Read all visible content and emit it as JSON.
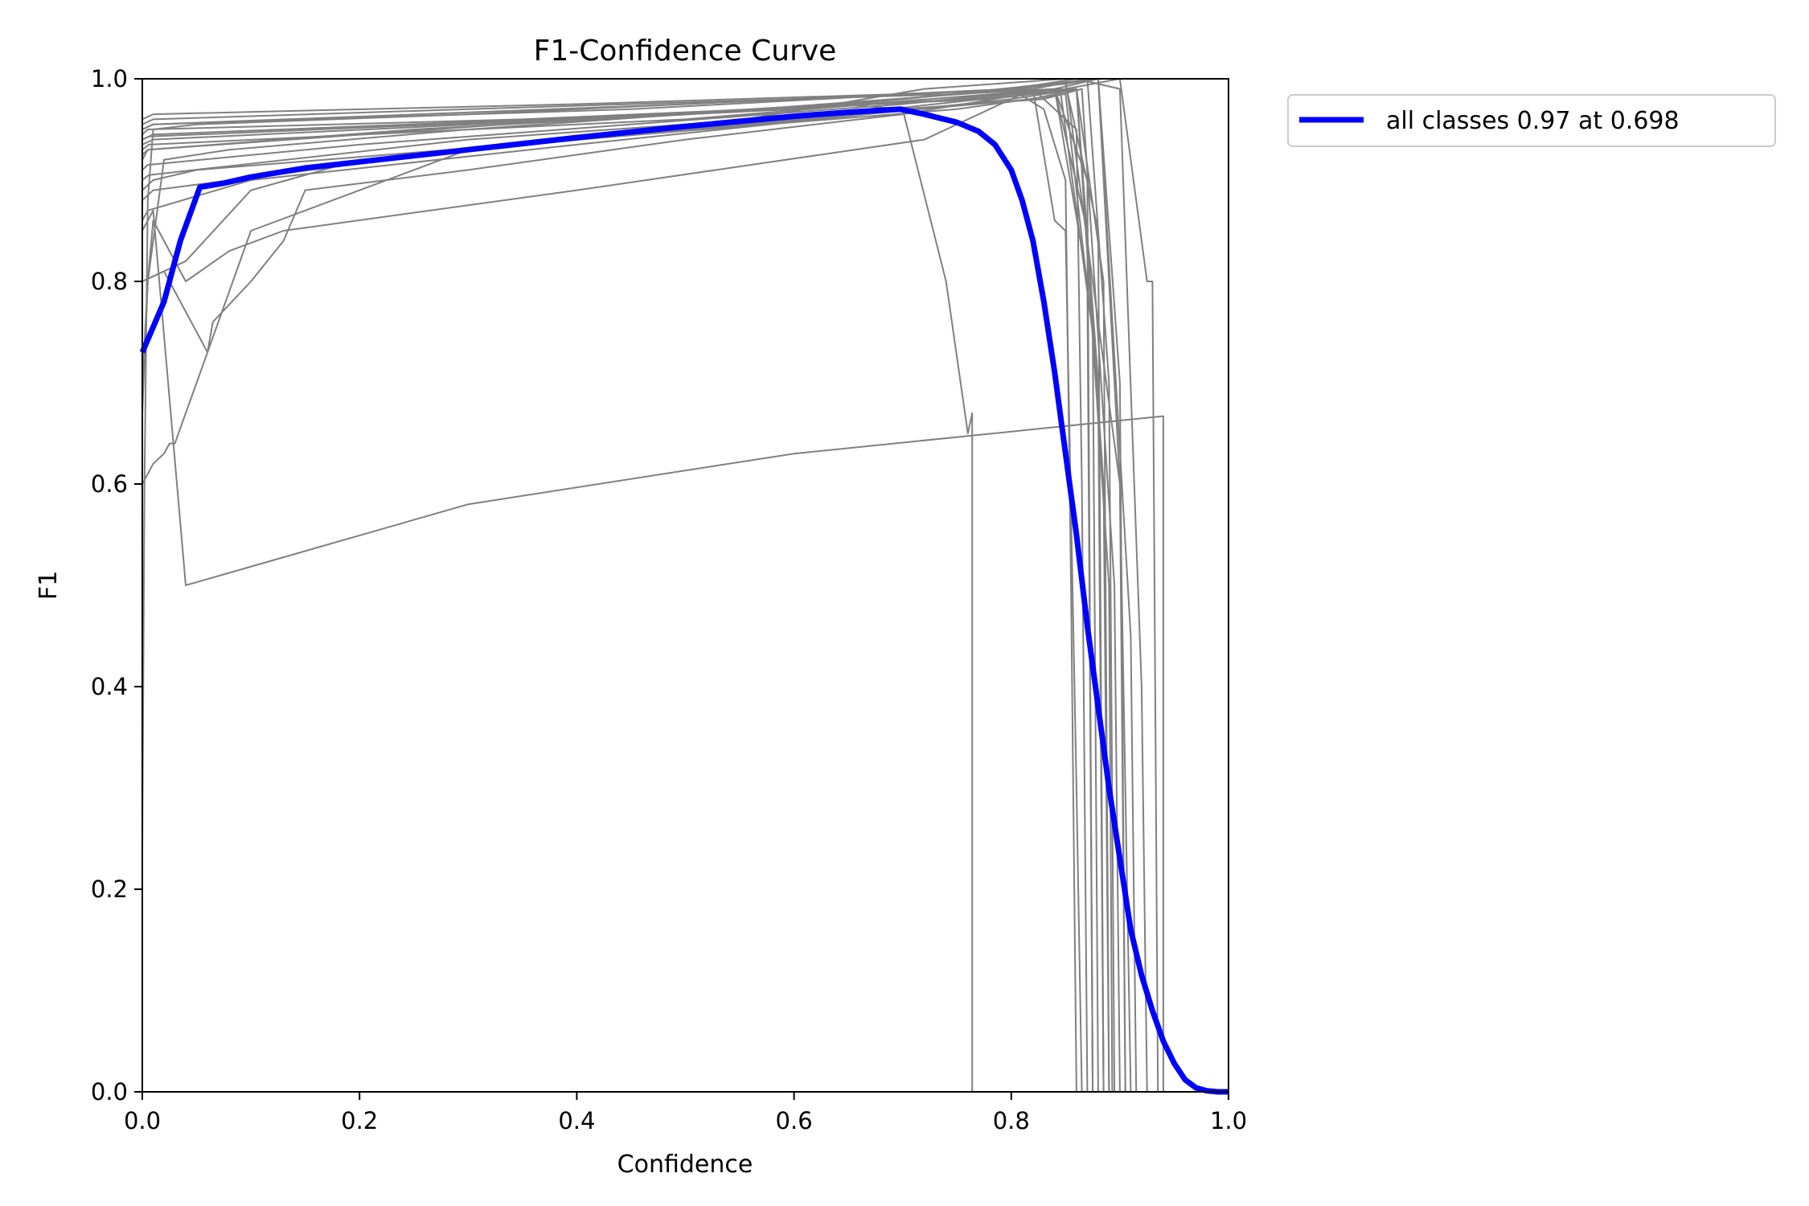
{
  "chart_data": {
    "type": "line",
    "title": "F1-Confidence Curve",
    "xlabel": "Confidence",
    "ylabel": "F1",
    "xlim": [
      0,
      1
    ],
    "ylim": [
      0,
      1
    ],
    "xticks": [
      "0.0",
      "0.2",
      "0.4",
      "0.6",
      "0.8",
      "1.0"
    ],
    "yticks": [
      "0.0",
      "0.2",
      "0.4",
      "0.6",
      "0.8",
      "1.0"
    ],
    "grid": false,
    "legend_position": "outside-top-right",
    "colors": {
      "per_class": "#808080",
      "all_classes": "#0000ff"
    },
    "series": [
      {
        "name": "all classes 0.97 at 0.698",
        "color": "#0000ff",
        "x": [
          0.0,
          0.02,
          0.035,
          0.053,
          0.075,
          0.1,
          0.15,
          0.2,
          0.3,
          0.4,
          0.5,
          0.6,
          0.65,
          0.698,
          0.72,
          0.75,
          0.77,
          0.785,
          0.8,
          0.81,
          0.82,
          0.83,
          0.84,
          0.85,
          0.86,
          0.87,
          0.88,
          0.89,
          0.9,
          0.91,
          0.92,
          0.93,
          0.94,
          0.95,
          0.96,
          0.97,
          0.98,
          0.99,
          1.0
        ],
        "y": [
          0.73,
          0.78,
          0.84,
          0.893,
          0.897,
          0.903,
          0.912,
          0.918,
          0.93,
          0.942,
          0.953,
          0.963,
          0.967,
          0.97,
          0.965,
          0.957,
          0.948,
          0.935,
          0.91,
          0.88,
          0.84,
          0.78,
          0.71,
          0.63,
          0.55,
          0.46,
          0.38,
          0.3,
          0.23,
          0.16,
          0.115,
          0.08,
          0.05,
          0.028,
          0.012,
          0.004,
          0.001,
          0.0,
          0.0
        ]
      }
    ],
    "class_series": [
      {
        "x": [
          0.0,
          0.002,
          0.005,
          0.01,
          0.05,
          0.3,
          0.6,
          0.8,
          0.83,
          0.85,
          0.855,
          0.86,
          0.87,
          1.0
        ],
        "y": [
          0.24,
          0.6,
          0.88,
          0.95,
          0.955,
          0.965,
          0.98,
          0.99,
          0.97,
          0.9,
          0.5,
          0.0,
          0.0,
          0.0
        ]
      },
      {
        "x": [
          0.0,
          0.01,
          0.4,
          0.7,
          0.82,
          0.86,
          0.865,
          0.87,
          1.0
        ],
        "y": [
          0.96,
          0.965,
          0.975,
          0.985,
          0.99,
          0.95,
          0.6,
          0.0,
          0.0
        ]
      },
      {
        "x": [
          0.0,
          0.01,
          0.3,
          0.75,
          0.84,
          0.87,
          0.875,
          1.0
        ],
        "y": [
          0.955,
          0.96,
          0.97,
          0.985,
          0.99,
          0.9,
          0.0,
          0.0
        ]
      },
      {
        "x": [
          0.0,
          0.01,
          0.45,
          0.8,
          0.85,
          0.88,
          0.885,
          1.0
        ],
        "y": [
          0.95,
          0.955,
          0.97,
          0.99,
          0.995,
          0.85,
          0.0,
          0.0
        ]
      },
      {
        "x": [
          0.0,
          0.005,
          0.35,
          0.78,
          0.86,
          0.885,
          0.89,
          1.0
        ],
        "y": [
          0.945,
          0.95,
          0.96,
          0.98,
          0.99,
          0.8,
          0.0,
          0.0
        ]
      },
      {
        "x": [
          0.0,
          0.006,
          0.5,
          0.82,
          0.87,
          0.89,
          0.895,
          1.0
        ],
        "y": [
          0.94,
          0.943,
          0.965,
          0.99,
          1.0,
          0.7,
          0.0,
          0.0
        ]
      },
      {
        "x": [
          0.0,
          0.01,
          0.6,
          0.85,
          0.88,
          0.9,
          0.905,
          1.0
        ],
        "y": [
          0.935,
          0.94,
          0.97,
          0.995,
          1.0,
          0.6,
          0.0,
          0.0
        ]
      },
      {
        "x": [
          0.0,
          0.005,
          0.25,
          0.76,
          0.845,
          0.875,
          0.88,
          1.0
        ],
        "y": [
          0.925,
          0.93,
          0.95,
          0.98,
          0.99,
          0.75,
          0.0,
          0.0
        ]
      },
      {
        "x": [
          0.0,
          0.005,
          0.2,
          0.7,
          0.84,
          0.87,
          0.875,
          1.0
        ],
        "y": [
          0.91,
          0.915,
          0.935,
          0.975,
          0.99,
          0.85,
          0.0,
          0.0
        ]
      },
      {
        "x": [
          0.0,
          0.01,
          0.05,
          0.4,
          0.75,
          0.85,
          0.88,
          0.885,
          1.0
        ],
        "y": [
          0.89,
          0.9,
          0.91,
          0.94,
          0.97,
          0.985,
          0.7,
          0.0,
          0.0
        ]
      },
      {
        "x": [
          0.0,
          0.005,
          0.1,
          0.4,
          0.8,
          0.86,
          0.89,
          0.893,
          1.0
        ],
        "y": [
          0.86,
          0.87,
          0.9,
          0.935,
          0.98,
          0.99,
          0.5,
          0.0,
          0.0
        ]
      },
      {
        "x": [
          0.0,
          0.005,
          0.02,
          0.08,
          0.3,
          0.7,
          0.88,
          0.9,
          0.905,
          1.0
        ],
        "y": [
          0.67,
          0.8,
          0.92,
          0.93,
          0.95,
          0.98,
          1.0,
          0.7,
          0.0,
          0.0
        ]
      },
      {
        "x": [
          0.0,
          0.01,
          0.02,
          0.025,
          0.03,
          0.04,
          0.05,
          0.06,
          0.1,
          0.3,
          0.6,
          0.86,
          0.88,
          0.885,
          1.0
        ],
        "y": [
          0.6,
          0.62,
          0.63,
          0.64,
          0.64,
          0.67,
          0.7,
          0.73,
          0.85,
          0.93,
          0.96,
          0.99,
          0.7,
          0.0,
          0.0
        ]
      },
      {
        "x": [
          0.0,
          0.02,
          0.06,
          0.065,
          0.1,
          0.13,
          0.15,
          0.3,
          0.5,
          0.7,
          0.84,
          0.87,
          0.875,
          1.0
        ],
        "y": [
          0.8,
          0.81,
          0.73,
          0.76,
          0.8,
          0.84,
          0.89,
          0.91,
          0.94,
          0.965,
          0.99,
          0.8,
          0.0,
          0.0
        ]
      },
      {
        "x": [
          0.0,
          0.04,
          0.07,
          0.1,
          0.2,
          0.5,
          0.72,
          0.85,
          0.9,
          0.91,
          1.0
        ],
        "y": [
          0.8,
          0.82,
          0.855,
          0.89,
          0.92,
          0.95,
          0.99,
          1.0,
          0.6,
          0.0,
          0.0
        ]
      },
      {
        "x": [
          0.0,
          0.005,
          0.01,
          0.04,
          0.08,
          0.13,
          0.4,
          0.72,
          0.82,
          0.84,
          0.85,
          0.86,
          0.865,
          1.0
        ],
        "y": [
          0.7,
          0.8,
          0.86,
          0.8,
          0.83,
          0.85,
          0.89,
          0.94,
          0.99,
          0.86,
          0.85,
          0.3,
          0.0,
          0.0
        ]
      },
      {
        "x": [
          0.0,
          0.01,
          0.04,
          0.3,
          0.6,
          0.94,
          0.94,
          1.0
        ],
        "y": [
          0.85,
          0.87,
          0.5,
          0.58,
          0.63,
          0.667,
          0.0,
          0.0
        ]
      },
      {
        "x": [
          0.0,
          0.005,
          0.4,
          0.64,
          0.7,
          0.74,
          0.76,
          0.764,
          0.764,
          1.0
        ],
        "y": [
          0.92,
          0.93,
          0.96,
          0.975,
          0.97,
          0.8,
          0.65,
          0.67,
          0.0,
          0.0
        ]
      },
      {
        "x": [
          0.0,
          0.01,
          0.5,
          0.8,
          0.86,
          0.9,
          0.92,
          0.925,
          1.0
        ],
        "y": [
          0.95,
          0.955,
          0.975,
          0.99,
          1.0,
          0.99,
          0.4,
          0.0,
          0.0
        ]
      },
      {
        "x": [
          0.0,
          0.01,
          0.6,
          0.85,
          0.9,
          0.925,
          0.93,
          0.935,
          1.0
        ],
        "y": [
          0.94,
          0.945,
          0.97,
          0.99,
          1.0,
          0.8,
          0.8,
          0.0,
          0.0
        ]
      },
      {
        "x": [
          0.0,
          0.006,
          0.5,
          0.84,
          0.88,
          0.91,
          0.915,
          1.0
        ],
        "y": [
          0.93,
          0.935,
          0.96,
          0.99,
          1.0,
          0.45,
          0.0,
          0.0
        ]
      },
      {
        "x": [
          0.0,
          0.006,
          0.3,
          0.83,
          0.865,
          0.895,
          0.9,
          1.0
        ],
        "y": [
          0.9,
          0.905,
          0.94,
          0.98,
          0.99,
          0.5,
          0.0,
          0.0
        ]
      },
      {
        "x": [
          0.0,
          0.01,
          0.3,
          0.82,
          0.86,
          0.885,
          0.89,
          1.0
        ],
        "y": [
          0.88,
          0.89,
          0.93,
          0.98,
          0.99,
          0.6,
          0.0,
          0.0
        ]
      }
    ]
  },
  "legend": {
    "label": "all classes 0.97 at 0.698"
  }
}
